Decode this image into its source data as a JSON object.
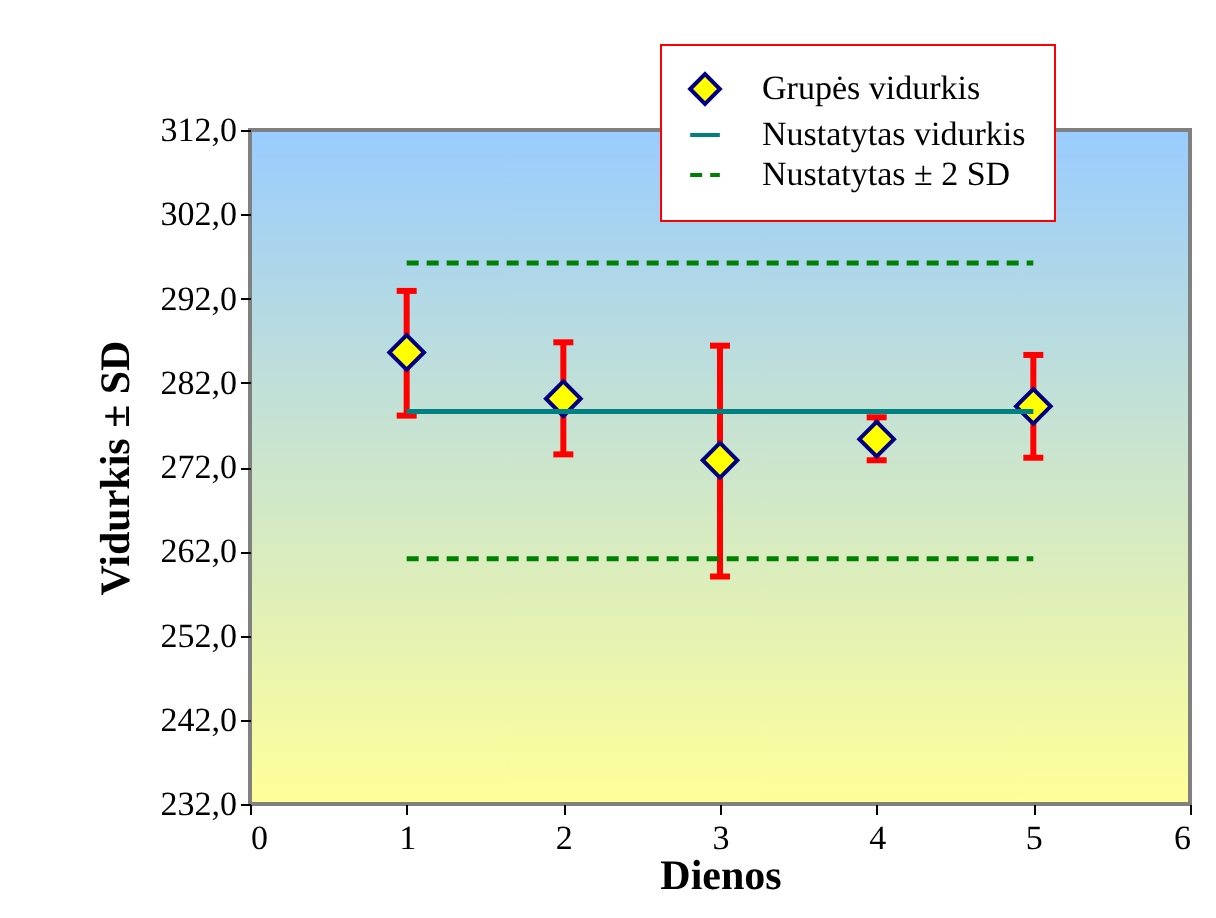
{
  "chart_data": {
    "type": "scatter",
    "xlabel": "Dienos",
    "ylabel": "Vidurkis ± SD",
    "xlim": [
      0,
      6
    ],
    "xticks": [
      0,
      1,
      2,
      3,
      4,
      5,
      6
    ],
    "ylim": [
      232,
      312
    ],
    "yticks": [
      {
        "value": 232,
        "label": "232,0"
      },
      {
        "value": 242,
        "label": "242,0"
      },
      {
        "value": 252,
        "label": "252,0"
      },
      {
        "value": 262,
        "label": "262,0"
      },
      {
        "value": 272,
        "label": "272,0"
      },
      {
        "value": 282,
        "label": "282,0"
      },
      {
        "value": 292,
        "label": "292,0"
      },
      {
        "value": 302,
        "label": "302,0"
      },
      {
        "value": 312,
        "label": "312,0"
      }
    ],
    "grid": false,
    "legend": "top right",
    "series": [
      {
        "name": "Grupės vidurkis",
        "marker": "diamond",
        "color": "#ffff00",
        "x": [
          1,
          2,
          3,
          4,
          5
        ],
        "values": [
          285.6,
          280.1,
          272.8,
          275.3,
          279.2
        ],
        "errors": [
          [
            278.1,
            292.9
          ],
          [
            273.5,
            286.8
          ],
          [
            259.0,
            286.4
          ],
          [
            272.8,
            277.9
          ],
          [
            273.1,
            285.3
          ]
        ]
      },
      {
        "name": "Nustatytas vidurkis",
        "type": "line",
        "color": "#008080",
        "line_style": "solid",
        "x": [
          1,
          5
        ],
        "values": [
          278.6,
          278.6
        ]
      },
      {
        "name": "Nustatytas ± 2 SD",
        "type": "line",
        "color": "#008000",
        "line_style": "dashed",
        "x": [
          1,
          5
        ],
        "values": [
          296.2,
          296.2
        ]
      },
      {
        "type": "line",
        "color": "#008000",
        "line_style": "dashed",
        "x": [
          1,
          5
        ],
        "values": [
          261.1,
          261.1
        ]
      }
    ]
  }
}
